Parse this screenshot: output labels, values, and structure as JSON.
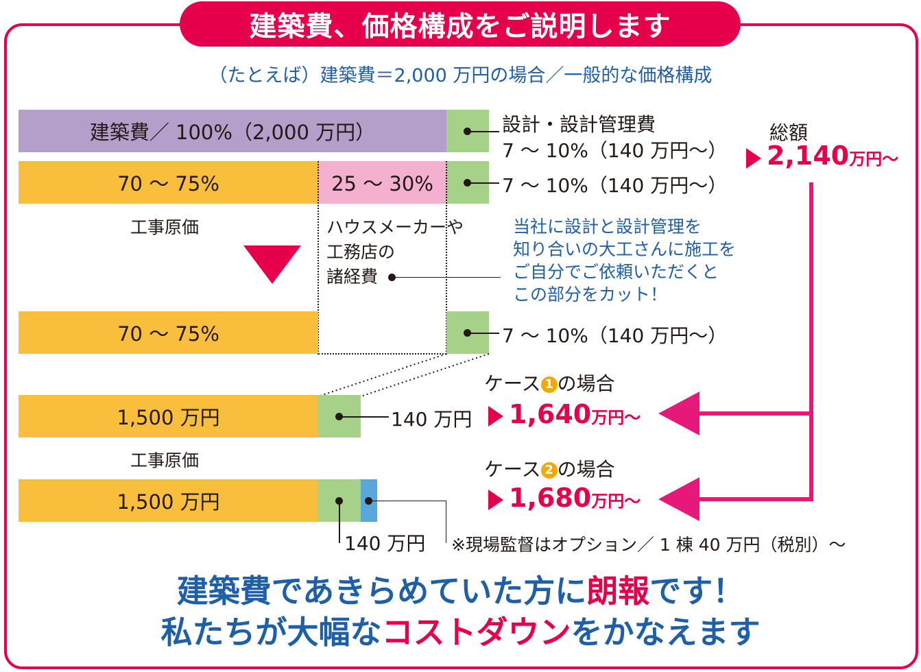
{
  "header": {
    "title": "建築費、価格構成をご説明します"
  },
  "subtitle": "（たとえば）建築費＝2,000 万円の場合／一般的な価格構成",
  "row1": {
    "label": "建築費／ 100%（2,000 万円）",
    "side_line1": "設計・設計管理費",
    "side_line2": "7 ～ 10%（140 万円～）"
  },
  "row2": {
    "cost_pct": "70 ～ 75%",
    "overhead_pct": "25 ～ 30%",
    "side": "7 ～ 10%（140 万円～）",
    "cost_caption": "工事原価",
    "overhead_caption1": "ハウスメーカーや",
    "overhead_caption2": "工務店の",
    "overhead_caption3": "諸経費"
  },
  "note": {
    "line1": "当社に設計と設計管理を",
    "line2": "知り合いの大工さんに施工を",
    "line3": "ご自分でご依頼いただくと",
    "line4": "この部分をカット！"
  },
  "row3": {
    "cost_pct": "70 ～ 75%",
    "side": "7 ～ 10%（140 万円～）"
  },
  "total": {
    "label": "総額",
    "value": "2,140",
    "unit": "万円～"
  },
  "case1": {
    "label_pre": "ケース",
    "num": "1",
    "label_post": "の場合",
    "bar": "1,500 万円",
    "side": "140 万円",
    "value": "1,640",
    "unit": "万円～",
    "caption": "工事原価"
  },
  "case2": {
    "label_pre": "ケース",
    "num": "2",
    "label_post": "の場合",
    "bar": "1,500 万円",
    "side": "140 万円",
    "value": "1,680",
    "unit": "万円～",
    "option_note": "※現場監督はオプション／ 1 棟 40 万円（税別）～"
  },
  "bottom": {
    "line1_a": "建築費であきらめていた方に",
    "line1_b": "朗報",
    "line1_c": "です！",
    "line2_a": "私たちが大幅な",
    "line2_b": "コストダウン",
    "line2_c": "をかなえます"
  },
  "colors": {
    "accent": "#e6004c",
    "blue_text": "#1f5fa8",
    "orange": "#f9bf3c",
    "green": "#a6d189",
    "pink": "#f3b1cf",
    "purple": "#b39fc9",
    "light_blue": "#5aa7dc"
  }
}
